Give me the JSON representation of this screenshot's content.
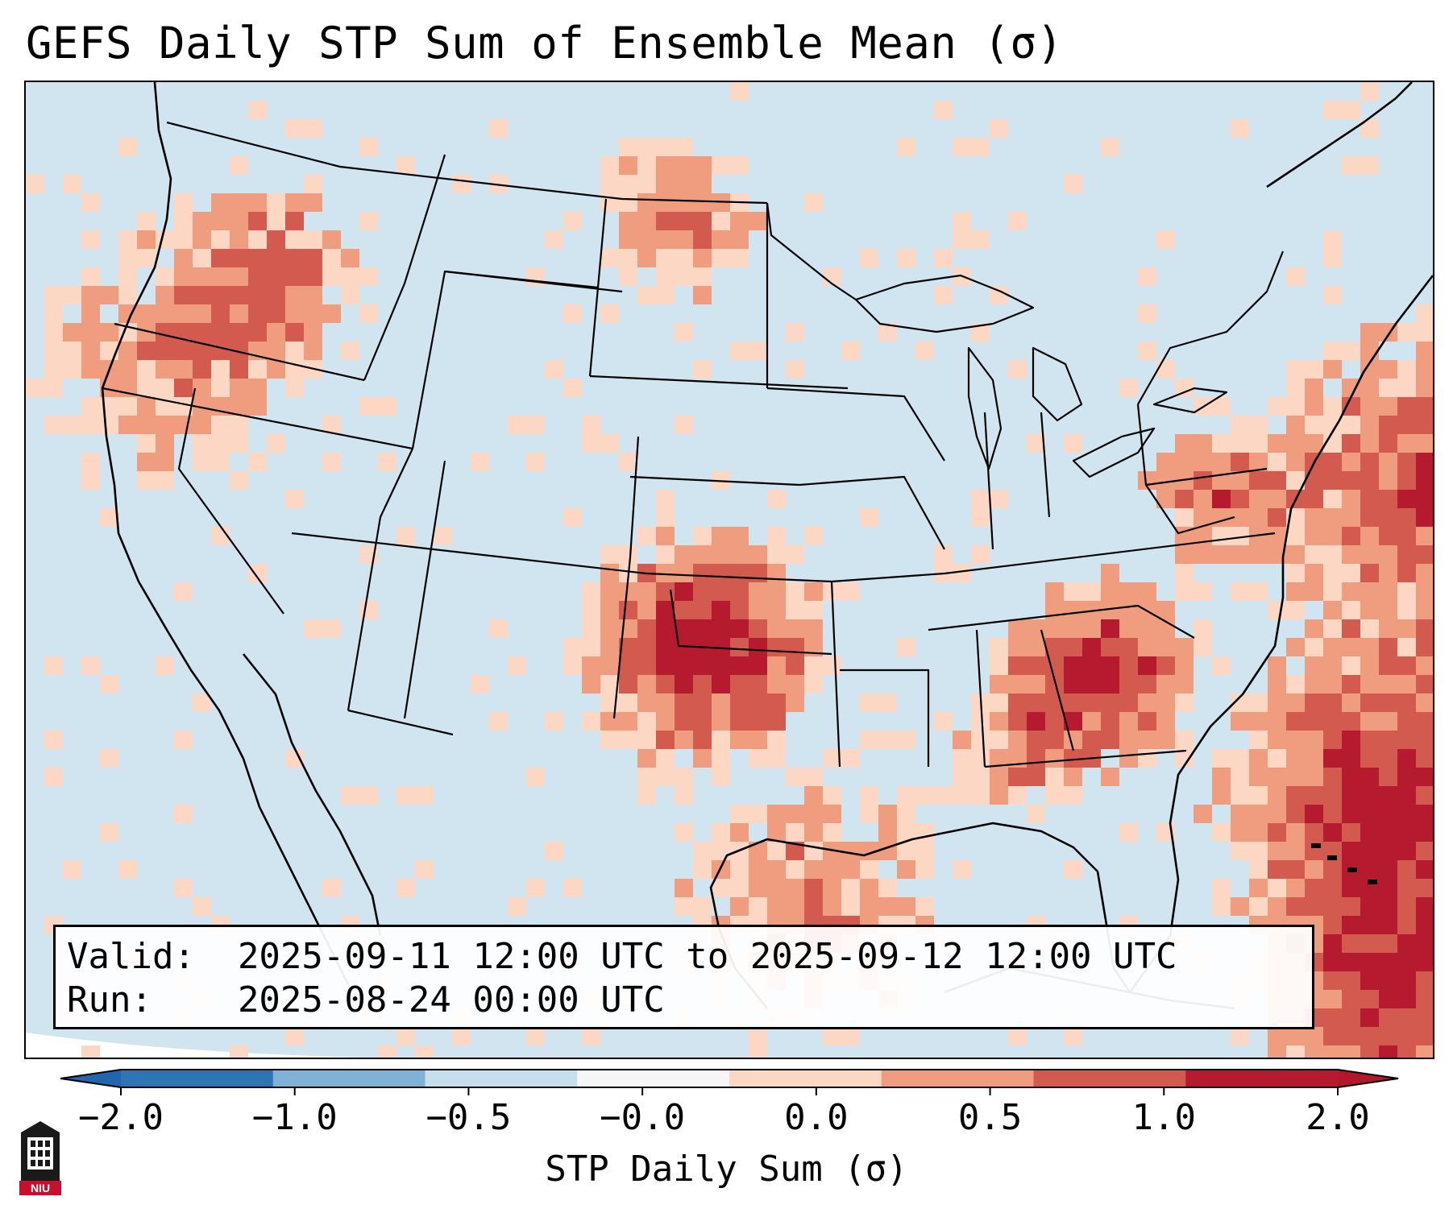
{
  "title": "GEFS Daily STP Sum of Ensemble Mean (σ)",
  "valid_label": "Valid:",
  "valid_value": "2025-09-11 12:00 UTC to 2025-09-12 12:00 UTC",
  "run_label": "Run:",
  "run_value": "2025-08-24 00:00 UTC",
  "colorbar": {
    "label": "STP Daily Sum (σ)",
    "ticks": [
      "−2.0",
      "−1.0",
      "−0.5",
      "−0.0",
      "0.0",
      "0.5",
      "1.0",
      "2.0"
    ],
    "colors": [
      "#2f75b5",
      "#7fb2d6",
      "#c7dfed",
      "#f6f6f6",
      "#fcd8c4",
      "#ef9c7f",
      "#d25a4f",
      "#b61a2f"
    ],
    "extend_low_color": "#2166ac",
    "extend_high_color": "#b2182b"
  },
  "map": {
    "background_color": "#d1e5f0",
    "hotspots": [
      {
        "region": "Oklahoma / Kansas",
        "level": 2.0
      },
      {
        "region": "Tennessee Valley",
        "level": 1.5
      },
      {
        "region": "Western Atlantic",
        "level": 2.0
      },
      {
        "region": "Northwest Pacific coast",
        "level": 1.0
      },
      {
        "region": "Central Pennsylvania",
        "level": 1.0
      }
    ]
  },
  "logo": {
    "text": "NIU",
    "name": "niu-logo"
  }
}
